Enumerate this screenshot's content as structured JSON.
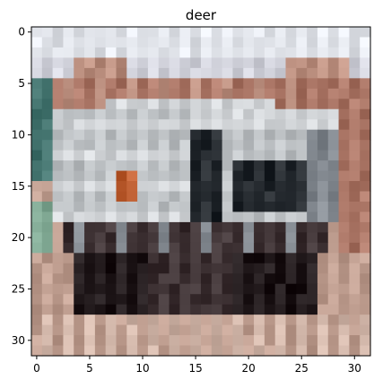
{
  "figure": {
    "title": "deer",
    "image": {
      "description_icon": "pixelated-photo",
      "resolution": [
        32,
        32
      ],
      "palette": {
        "sky": "#ECEFF5",
        "sky_haze": "#DCDDE6",
        "trees": "#B58070",
        "trees_light": "#C79B8B",
        "truck_body": "#C8CCCF",
        "truck_light": "#DDE0E3",
        "truck_shadow": "#8D939A",
        "window_dark": "#2E3338",
        "orange_mark": "#C6673A",
        "teal_left": "#4F7F7A",
        "green_left": "#8BB39E",
        "wheels": "#2A2224",
        "undercarriage": "#4A3E40",
        "ground": "#C9A89A",
        "ground_light": "#D9BEB1"
      }
    },
    "x_axis": {
      "ticks": [
        0,
        5,
        10,
        15,
        20,
        25,
        30
      ],
      "range": [
        -0.5,
        31.5
      ]
    },
    "y_axis": {
      "ticks": [
        0,
        5,
        10,
        15,
        20,
        25,
        30
      ],
      "range": [
        -0.5,
        31.5
      ]
    }
  }
}
